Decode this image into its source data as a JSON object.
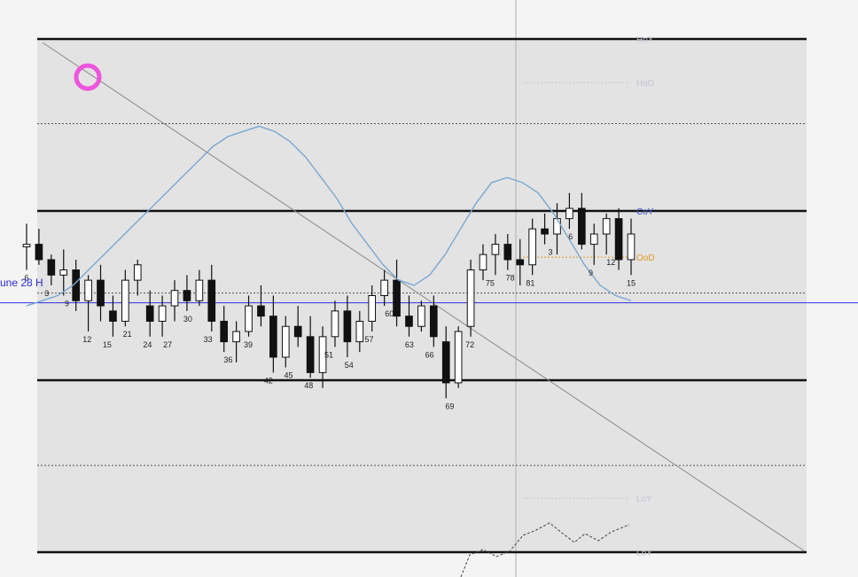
{
  "side_label": "une 28 H",
  "colors": {
    "background": "#f4f4f4",
    "plot_area": "#e3e3e3",
    "level_line": "#111111",
    "candle_up": "#ffffff",
    "candle_down": "#111111",
    "moving_average": "#78a8d4",
    "trendline": "#8a8a8a",
    "horizontal_marker": "#3030e0",
    "vertical_marker": "#b0b0b0",
    "coy_label": "#3a5ad8",
    "ood_label": "#e09a22",
    "faded_label": "#c4c4d6",
    "highlight_ring": "#ee55dd"
  },
  "icons": [
    "highlight-ring"
  ],
  "chart_data": {
    "type": "candlestick",
    "y_axis": {
      "labels": "none printed",
      "range": [
        0,
        100
      ]
    },
    "grid": false,
    "levels": [
      {
        "name": "HoY",
        "label": "HoY",
        "price": 100,
        "style": "solid",
        "label_color": "faded"
      },
      {
        "name": "HoD",
        "label": "HoD",
        "price": 91.5,
        "style": "dotted-short",
        "label_color": "faded"
      },
      {
        "name": "upper-dotted",
        "label": "",
        "price": 83.5,
        "style": "dotted"
      },
      {
        "name": "CoY",
        "label": "CoY",
        "price": 66.5,
        "style": "solid",
        "label_color": "blue"
      },
      {
        "name": "OoD",
        "label": "OoD",
        "price": 57.5,
        "style": "dotted-short",
        "label_color": "orange"
      },
      {
        "name": "mid-dotted",
        "label": "",
        "price": 50.5,
        "style": "dotted"
      },
      {
        "name": "june-28-high",
        "label": "une 28 H",
        "price": 48.6,
        "style": "blue-line"
      },
      {
        "name": "lower-solid",
        "label": "",
        "price": 33.5,
        "style": "solid"
      },
      {
        "name": "lower-dotted",
        "label": "",
        "price": 16.9,
        "style": "dotted"
      },
      {
        "name": "LoY",
        "label": "LoY",
        "price": 10.5,
        "style": "dotted-short",
        "label_color": "faded"
      },
      {
        "name": "LoY-line",
        "label": "LoY",
        "price": 0,
        "style": "solid",
        "label_color": "faded"
      }
    ],
    "candles": [
      [
        59.5,
        64,
        55,
        60
      ],
      [
        60,
        63,
        56,
        57
      ],
      [
        57,
        58,
        52,
        54
      ],
      [
        54,
        59,
        50,
        55
      ],
      [
        55,
        57,
        47,
        49
      ],
      [
        49,
        54,
        43,
        53
      ],
      [
        53,
        56,
        45,
        48
      ],
      [
        47,
        50,
        42,
        45
      ],
      [
        45,
        55,
        44,
        53
      ],
      [
        53,
        57,
        50,
        56
      ],
      [
        48,
        51,
        42,
        45
      ],
      [
        45,
        50,
        42,
        48
      ],
      [
        48,
        53,
        45,
        51
      ],
      [
        51,
        54,
        47,
        49
      ],
      [
        49,
        55,
        48,
        53
      ],
      [
        53,
        56,
        43,
        45
      ],
      [
        45,
        48,
        39,
        41
      ],
      [
        41,
        45,
        37,
        43
      ],
      [
        43,
        50,
        42,
        48
      ],
      [
        48,
        52,
        44,
        46
      ],
      [
        46,
        50,
        35,
        38
      ],
      [
        38,
        46,
        36,
        44
      ],
      [
        44,
        48,
        40,
        42
      ],
      [
        42,
        46,
        34,
        35
      ],
      [
        35,
        44,
        32,
        42
      ],
      [
        42,
        49,
        40,
        47
      ],
      [
        47,
        50,
        38,
        41
      ],
      [
        41,
        47,
        39,
        45
      ],
      [
        45,
        52,
        43,
        50
      ],
      [
        50,
        55,
        48,
        53
      ],
      [
        53,
        57,
        44,
        46
      ],
      [
        46,
        50,
        42,
        44
      ],
      [
        44,
        49,
        43,
        48
      ],
      [
        48,
        50,
        40,
        42
      ],
      [
        41,
        44,
        30,
        33
      ],
      [
        33,
        44,
        32,
        43
      ],
      [
        44,
        57,
        42,
        55
      ],
      [
        55,
        60,
        53,
        58
      ],
      [
        58,
        62,
        54,
        60
      ],
      [
        60,
        62,
        55,
        57
      ],
      [
        57,
        61,
        52,
        56
      ],
      [
        56,
        65,
        54,
        63
      ],
      [
        63,
        66,
        60,
        62
      ],
      [
        62,
        68,
        58,
        65
      ],
      [
        65,
        70,
        63,
        67
      ],
      [
        67,
        70,
        59,
        60
      ],
      [
        60,
        64,
        56,
        62
      ],
      [
        62,
        66,
        58,
        65
      ],
      [
        65,
        67,
        55,
        57
      ],
      [
        57,
        65,
        54,
        62
      ]
    ],
    "note": "Candle values are [open, high, low, close]; only bars with visible numeric labels are labelled below. Values are approximate readings of price relative to the levels (0 = LoY, 100 = HoY).",
    "bar_labels": [
      "6",
      "3",
      "9",
      "12",
      "15",
      "21",
      "24",
      "27",
      "30",
      "33",
      "36",
      "39",
      "42",
      "45",
      "48",
      "51",
      "54",
      "57",
      "60",
      "63",
      "66",
      "69",
      "72",
      "75",
      "78",
      "81",
      "3",
      "6",
      "9",
      "12",
      "15"
    ],
    "moving_average": [
      48,
      49,
      50,
      52,
      55,
      58,
      61,
      64,
      67,
      70,
      73,
      76,
      79,
      81,
      82,
      83,
      82,
      80,
      77,
      73,
      69,
      64,
      60,
      56,
      53,
      52,
      54,
      58,
      63,
      68,
      72,
      73,
      72,
      70,
      66,
      61,
      56,
      52,
      50,
      49
    ]
  }
}
